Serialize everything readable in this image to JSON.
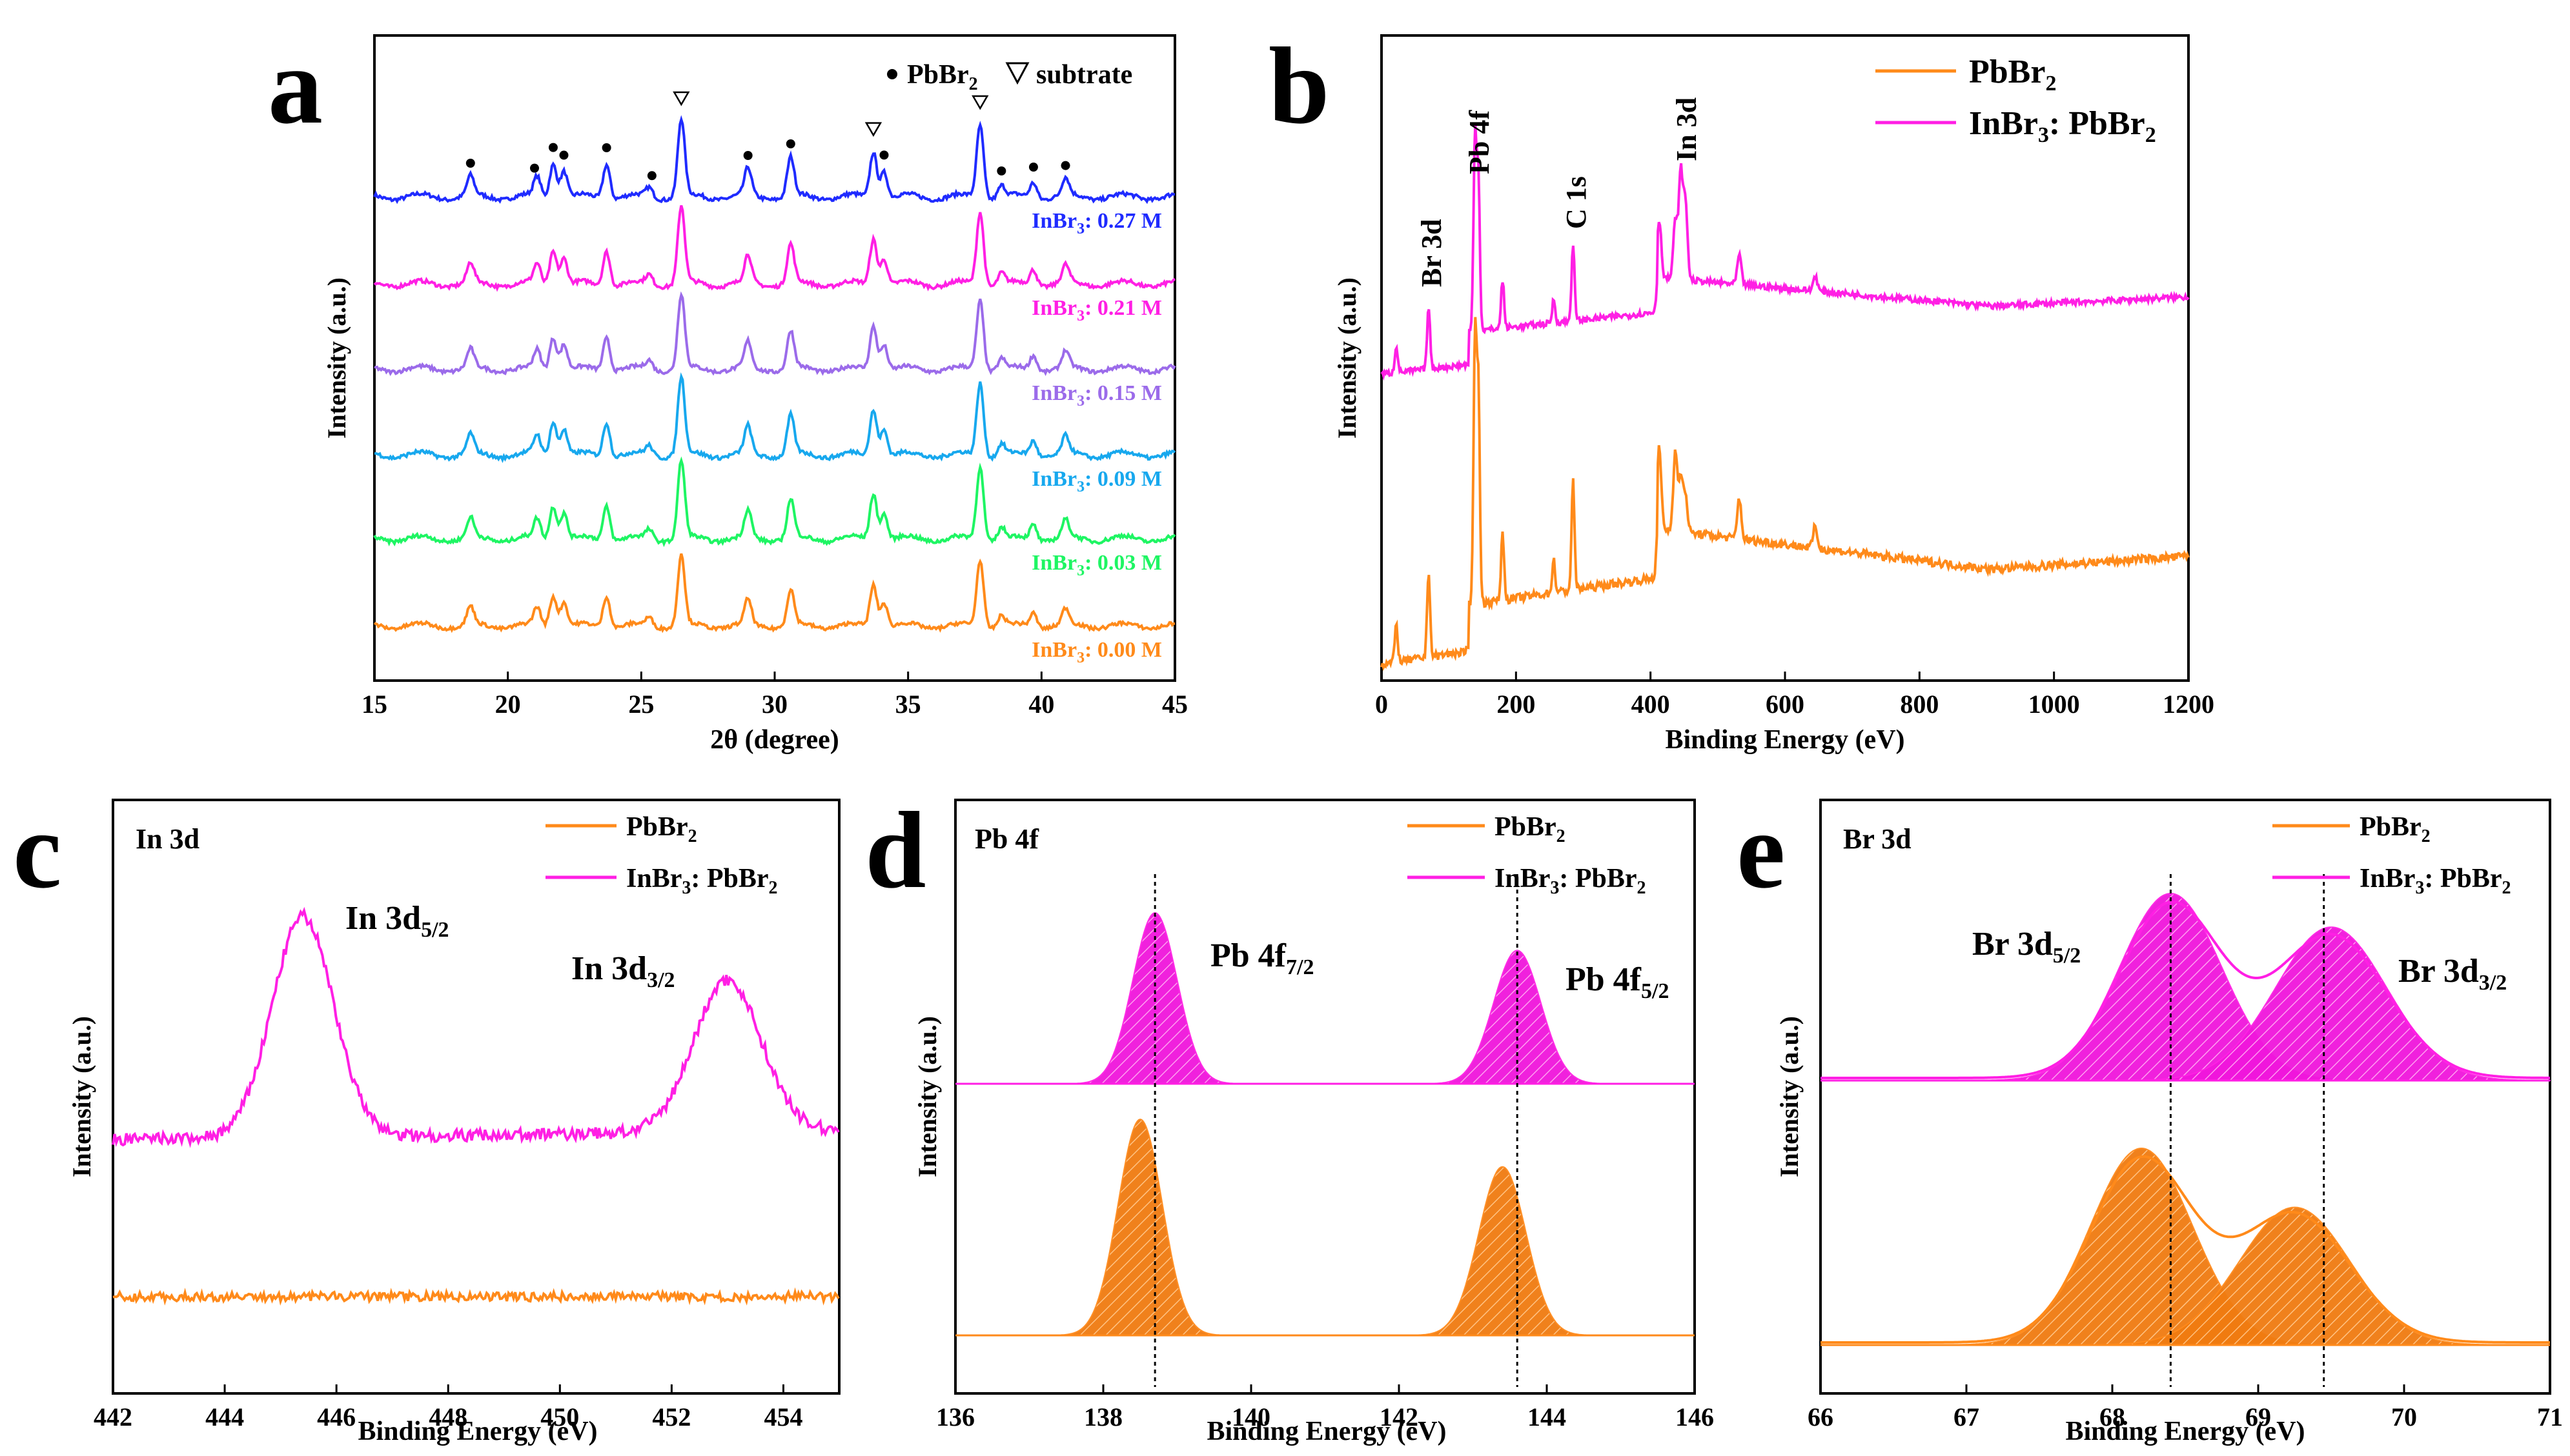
{
  "figure": {
    "panels": [
      {
        "id": "a",
        "label": "a",
        "xlabel": "2θ (degree)",
        "ylabel": "Intensity (a.u.)",
        "xlim": [
          15,
          45
        ],
        "xticks": [
          "15",
          "20",
          "25",
          "30",
          "35",
          "40",
          "45"
        ],
        "legend": {
          "dot_label": "PbBr",
          "dot_sub": "2",
          "tri_label": "subtrate"
        },
        "series": [
          {
            "name": "InBr",
            "sub": "3",
            "conc": ": 0.27 M",
            "color": "#1f2bff"
          },
          {
            "name": "InBr",
            "sub": "3",
            "conc": ": 0.21 M",
            "color": "#ff1fe4"
          },
          {
            "name": "InBr",
            "sub": "3",
            "conc": ": 0.15 M",
            "color": "#9b6bea"
          },
          {
            "name": "InBr",
            "sub": "3",
            "conc": ": 0.09 M",
            "color": "#17a8ee"
          },
          {
            "name": "InBr",
            "sub": "3",
            "conc": ": 0.03 M",
            "color": "#1ef563"
          },
          {
            "name": "InBr",
            "sub": "3",
            "conc": ": 0.00 M",
            "color": "#ff8a1a"
          }
        ]
      },
      {
        "id": "b",
        "label": "b",
        "xlabel": "Binding Energy (eV)",
        "ylabel": "Intensity (a.u.)",
        "xlim": [
          0,
          1200
        ],
        "xticks": [
          "0",
          "200",
          "400",
          "600",
          "800",
          "1000",
          "1200"
        ],
        "legend": [
          {
            "text": "PbBr",
            "sub": "2",
            "color": "#ff8a1a"
          },
          {
            "text": "InBr",
            "sub": "3",
            "tail": ": PbBr",
            "sub2": "2",
            "color": "#ff1fe4"
          }
        ],
        "peak_labels": [
          "Br 3d",
          "Pb 4f",
          "C 1s",
          "In 3d"
        ]
      },
      {
        "id": "c",
        "label": "c",
        "title": "In 3d",
        "xlabel": "Binding Energy (eV)",
        "ylabel": "Intensity (a.u.)",
        "xlim": [
          442,
          455
        ],
        "xticks": [
          "442",
          "444",
          "446",
          "448",
          "450",
          "452",
          "454"
        ],
        "legend": [
          {
            "text": "PbBr",
            "sub": "2",
            "color": "#ff8a1a"
          },
          {
            "text": "InBr",
            "sub": "3",
            "tail": ": PbBr",
            "sub2": "2",
            "color": "#ff1fe4"
          }
        ],
        "peak1": {
          "main": "In 3d",
          "sub": "5/2"
        },
        "peak2": {
          "main": "In 3d",
          "sub": "3/2"
        }
      },
      {
        "id": "d",
        "label": "d",
        "title": "Pb 4f",
        "xlabel": "Binding Energy (eV)",
        "ylabel": "Intensity (a.u.)",
        "xlim": [
          136,
          146
        ],
        "xticks": [
          "136",
          "138",
          "140",
          "142",
          "144",
          "146"
        ],
        "legend": [
          {
            "text": "PbBr",
            "sub": "2",
            "color": "#ff8a1a"
          },
          {
            "text": "InBr",
            "sub": "3",
            "tail": ": PbBr",
            "sub2": "2",
            "color": "#ff1fe4"
          }
        ],
        "peak1": {
          "main": "Pb 4f",
          "sub": "7/2"
        },
        "peak2": {
          "main": "Pb 4f",
          "sub": "5/2"
        }
      },
      {
        "id": "e",
        "label": "e",
        "title": "Br 3d",
        "xlabel": "Binding Energy (eV)",
        "ylabel": "Intensity (a.u.)",
        "xlim": [
          66,
          71
        ],
        "xticks": [
          "66",
          "67",
          "68",
          "69",
          "70",
          "71"
        ],
        "legend": [
          {
            "text": "PbBr",
            "sub": "2",
            "color": "#ff8a1a"
          },
          {
            "text": "InBr",
            "sub": "3",
            "tail": ": PbBr",
            "sub2": "2",
            "color": "#ff1fe4"
          }
        ],
        "peak1": {
          "main": "Br 3d",
          "sub": "5/2"
        },
        "peak2": {
          "main": "Br 3d",
          "sub": "3/2"
        }
      }
    ]
  },
  "chart_data": [
    {
      "panel": "a",
      "type": "line",
      "title": "",
      "xlabel": "2θ (degree)",
      "ylabel": "Intensity (a.u.)",
      "xlim": [
        15,
        45
      ],
      "grid": false,
      "series_names": [
        "InBr3: 0.27 M",
        "InBr3: 0.21 M",
        "InBr3: 0.15 M",
        "InBr3: 0.09 M",
        "InBr3: 0.03 M",
        "InBr3: 0.00 M"
      ],
      "peaks_2theta": [
        {
          "x": 18.6,
          "h": 0.25
        },
        {
          "x": 21.1,
          "h": 0.25
        },
        {
          "x": 21.7,
          "h": 0.45
        },
        {
          "x": 22.1,
          "h": 0.35
        },
        {
          "x": 23.7,
          "h": 0.45
        },
        {
          "x": 25.3,
          "h": 0.12
        },
        {
          "x": 26.5,
          "h": 1.0
        },
        {
          "x": 29.0,
          "h": 0.35
        },
        {
          "x": 30.6,
          "h": 0.5
        },
        {
          "x": 33.7,
          "h": 0.6
        },
        {
          "x": 34.1,
          "h": 0.35
        },
        {
          "x": 37.7,
          "h": 0.95
        },
        {
          "x": 38.5,
          "h": 0.15
        },
        {
          "x": 39.7,
          "h": 0.2
        },
        {
          "x": 40.9,
          "h": 0.22
        }
      ],
      "pbbr2_marker_positions": [
        18.6,
        21.0,
        21.7,
        22.1,
        23.7,
        25.4,
        29.0,
        30.6,
        34.1,
        38.5,
        39.7,
        40.9
      ],
      "substrate_marker_positions": [
        26.5,
        33.7,
        37.7
      ]
    },
    {
      "panel": "b",
      "type": "line",
      "title": "",
      "xlabel": "Binding Energy (eV)",
      "ylabel": "Intensity (a.u.)",
      "xlim": [
        0,
        1200
      ],
      "series_names": [
        "PbBr2",
        "InBr3: PbBr2"
      ],
      "peaks_eV": [
        {
          "x": 22,
          "h": 0.14,
          "label": ""
        },
        {
          "x": 70,
          "h": 0.32,
          "label": "Br 3d"
        },
        {
          "x": 139,
          "h": 1.0,
          "label": "Pb 4f"
        },
        {
          "x": 144,
          "h": 0.8,
          "label": ""
        },
        {
          "x": 180,
          "h": 0.25,
          "label": ""
        },
        {
          "x": 256,
          "h": 0.12,
          "label": ""
        },
        {
          "x": 284.8,
          "h": 0.4,
          "label": "C 1s"
        },
        {
          "x": 413,
          "h": 0.3,
          "label": ""
        },
        {
          "x": 437,
          "h": 0.3,
          "label": ""
        },
        {
          "x": 445,
          "h": 0.55,
          "label": "In 3d"
        },
        {
          "x": 452,
          "h": 0.4,
          "label": ""
        },
        {
          "x": 532,
          "h": 0.15,
          "label": ""
        },
        {
          "x": 645,
          "h": 0.08,
          "label": ""
        }
      ]
    },
    {
      "panel": "c",
      "type": "line",
      "title": "In 3d",
      "xlabel": "Binding Energy (eV)",
      "ylabel": "Intensity (a.u.)",
      "xlim": [
        442,
        455
      ],
      "series_names": [
        "PbBr2",
        "InBr3: PbBr2"
      ],
      "peak_positions_eV": {
        "In 3d5/2": 445.4,
        "In 3d3/2": 453.0
      },
      "peak_heights": {
        "In 3d5/2": 1.0,
        "In 3d3/2": 0.7
      }
    },
    {
      "panel": "d",
      "type": "area",
      "title": "Pb 4f",
      "xlabel": "Binding Energy (eV)",
      "ylabel": "Intensity (a.u.)",
      "xlim": [
        136,
        146
      ],
      "series": [
        {
          "name": "InBr3: PbBr2",
          "peaks_eV": [
            {
              "x": 138.7,
              "h": 1.0
            },
            {
              "x": 143.6,
              "h": 0.78
            }
          ]
        },
        {
          "name": "PbBr2",
          "peaks_eV": [
            {
              "x": 138.5,
              "h": 1.0
            },
            {
              "x": 143.4,
              "h": 0.78
            }
          ]
        }
      ],
      "reference_lines_eV": [
        138.7,
        143.6
      ]
    },
    {
      "panel": "e",
      "type": "area",
      "title": "Br 3d",
      "xlabel": "Binding Energy (eV)",
      "ylabel": "Intensity (a.u.)",
      "xlim": [
        66,
        71
      ],
      "series": [
        {
          "name": "InBr3: PbBr2",
          "peaks_eV": [
            {
              "x": 68.4,
              "h": 1.0
            },
            {
              "x": 69.5,
              "h": 0.82
            }
          ]
        },
        {
          "name": "PbBr2",
          "peaks_eV": [
            {
              "x": 68.2,
              "h": 1.0
            },
            {
              "x": 69.25,
              "h": 0.7
            }
          ]
        }
      ],
      "reference_lines_eV": [
        68.4,
        69.45
      ]
    }
  ]
}
